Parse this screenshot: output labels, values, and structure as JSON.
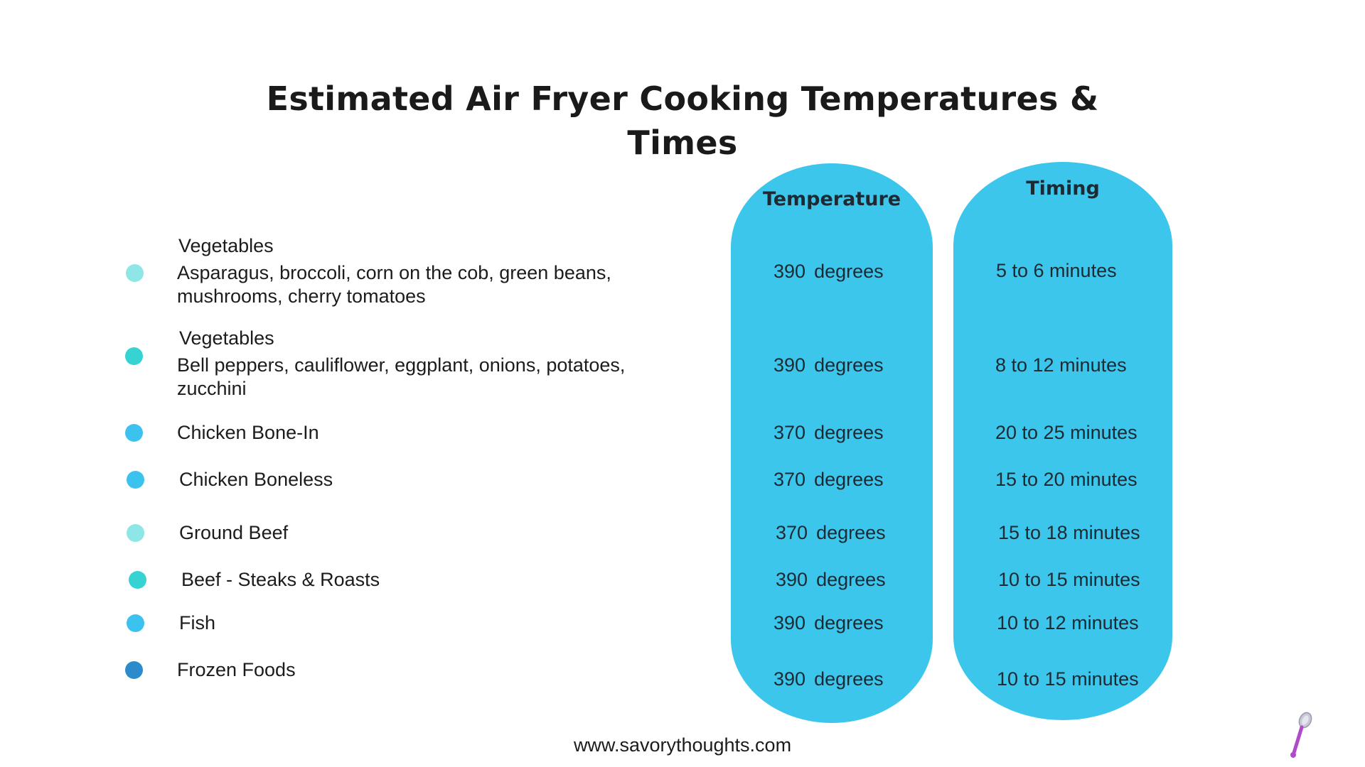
{
  "title": "Estimated Air Fryer Cooking Temperatures & Times",
  "headers": {
    "temperature": "Temperature",
    "timing": "Timing"
  },
  "rows": [
    {
      "category": "Vegetables",
      "description": "Asparagus, broccoli, corn on the cob, green beans, mushrooms, cherry tomatoes",
      "temp_value": "390",
      "temp_unit": "degrees",
      "timing": "5 to 6 minutes",
      "dot_color": "#8ee6e6"
    },
    {
      "category": "Vegetables",
      "description": "Bell peppers, cauliflower, eggplant, onions, potatoes, zucchini",
      "temp_value": "390",
      "temp_unit": "degrees",
      "timing": "8 to 12 minutes",
      "dot_color": "#37d3d3"
    },
    {
      "category": "Chicken Bone-In",
      "description": "",
      "temp_value": "370",
      "temp_unit": "degrees",
      "timing": "20 to 25 minutes",
      "dot_color": "#3cc2ee"
    },
    {
      "category": "Chicken Boneless",
      "description": "",
      "temp_value": "370",
      "temp_unit": "degrees",
      "timing": "15 to 20 minutes",
      "dot_color": "#3cc2ee"
    },
    {
      "category": "Ground Beef",
      "description": "",
      "temp_value": "370",
      "temp_unit": "degrees",
      "timing": "15 to 18 minutes",
      "dot_color": "#8ee6e6"
    },
    {
      "category": "Beef - Steaks & Roasts",
      "description": "",
      "temp_value": "390",
      "temp_unit": "degrees",
      "timing": "10 to 15 minutes",
      "dot_color": "#37d3d3"
    },
    {
      "category": "Fish",
      "description": "",
      "temp_value": "390",
      "temp_unit": "degrees",
      "timing": "10 to 12 minutes",
      "dot_color": "#3cc2ee"
    },
    {
      "category": "Frozen Foods",
      "description": "",
      "temp_value": "390",
      "temp_unit": "degrees",
      "timing": "10 to 15 minutes",
      "dot_color": "#2d8bcb"
    }
  ],
  "footer": "www.savorythoughts.com",
  "colors": {
    "pill": "#3dc6ec",
    "title": "#1a1a1a",
    "logo": "#b04ac8"
  },
  "logo_icon": "spoon-icon"
}
